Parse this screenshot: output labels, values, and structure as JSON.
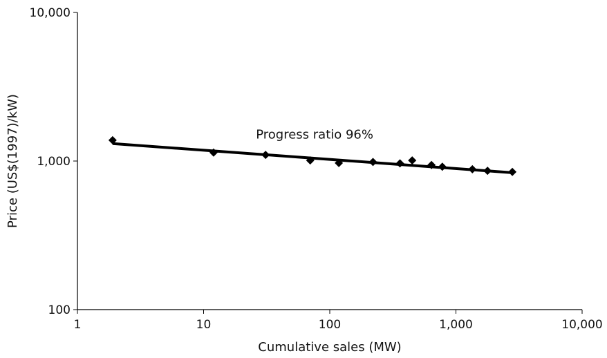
{
  "chart_data": {
    "type": "scatter",
    "title": "",
    "xlabel": "Cumulative sales (MW)",
    "ylabel": "Price (US$(1997)/kW)",
    "xscale": "log",
    "yscale": "log",
    "xlim": [
      1,
      10000
    ],
    "ylim": [
      100,
      10000
    ],
    "x_tick_values": [
      1,
      10,
      100,
      1000,
      10000
    ],
    "x_tick_labels": [
      "1",
      "10",
      "100",
      "1,000",
      "10,000"
    ],
    "y_tick_values": [
      100,
      1000,
      10000
    ],
    "y_tick_labels": [
      "100",
      "1,000",
      "10,000"
    ],
    "grid": false,
    "legend": "none",
    "series": [
      {
        "marker": "diamond",
        "color": "#000000",
        "points": [
          {
            "x": 1.9,
            "y": 1380
          },
          {
            "x": 12,
            "y": 1140
          },
          {
            "x": 31,
            "y": 1100
          },
          {
            "x": 70,
            "y": 1010
          },
          {
            "x": 118,
            "y": 970
          },
          {
            "x": 220,
            "y": 985
          },
          {
            "x": 360,
            "y": 965
          },
          {
            "x": 450,
            "y": 1010
          },
          {
            "x": 640,
            "y": 940
          },
          {
            "x": 780,
            "y": 915
          },
          {
            "x": 1350,
            "y": 880
          },
          {
            "x": 1780,
            "y": 860
          },
          {
            "x": 2800,
            "y": 845
          }
        ]
      }
    ],
    "trendline": {
      "color": "#000000",
      "from": {
        "x": 1.9,
        "y": 1310
      },
      "to": {
        "x": 2800,
        "y": 835
      }
    },
    "annotations": [
      {
        "text": "Progress ratio 96%",
        "x": 26,
        "y": 1420
      }
    ]
  }
}
